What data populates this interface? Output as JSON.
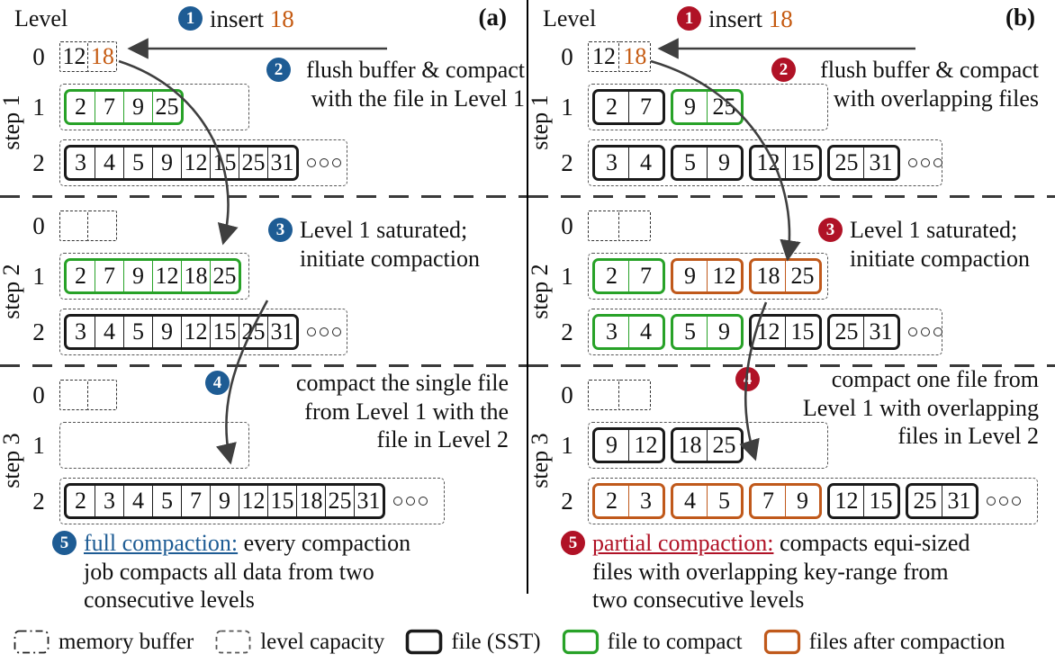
{
  "figure": {
    "panels": [
      {
        "name": "a",
        "tag": "(a)",
        "level_label": "Level",
        "badge_color": "#1e5c94",
        "steps": [
          {
            "label": "step 1",
            "levels": [
              {
                "num": "0",
                "kind": "buffer",
                "files": [
                  {
                    "style": "buffer",
                    "cells": [
                      {
                        "v": "12"
                      },
                      {
                        "v": "18",
                        "c": "#c55a11"
                      }
                    ]
                  }
                ]
              },
              {
                "num": "1",
                "kind": "capacity",
                "cap": 6.2,
                "files": [
                  {
                    "style": "compact",
                    "cells": [
                      {
                        "v": "2"
                      },
                      {
                        "v": "7"
                      },
                      {
                        "v": "9"
                      },
                      {
                        "v": "25"
                      }
                    ]
                  }
                ]
              },
              {
                "num": "2",
                "kind": "capacity",
                "cap": 9.4,
                "more": true,
                "files": [
                  {
                    "style": "sst",
                    "cells": [
                      {
                        "v": "3"
                      },
                      {
                        "v": "4"
                      },
                      {
                        "v": "5"
                      },
                      {
                        "v": "9"
                      },
                      {
                        "v": "12"
                      },
                      {
                        "v": "15"
                      },
                      {
                        "v": "25"
                      },
                      {
                        "v": "31"
                      }
                    ]
                  }
                ]
              }
            ]
          },
          {
            "label": "step 2",
            "levels": [
              {
                "num": "0",
                "kind": "buffer",
                "files": [
                  {
                    "style": "buffer",
                    "cells": [
                      {},
                      {}
                    ]
                  }
                ]
              },
              {
                "num": "1",
                "kind": "capacity",
                "cap": 6.2,
                "files": [
                  {
                    "style": "compact",
                    "cells": [
                      {
                        "v": "2"
                      },
                      {
                        "v": "7"
                      },
                      {
                        "v": "9"
                      },
                      {
                        "v": "12"
                      },
                      {
                        "v": "18"
                      },
                      {
                        "v": "25"
                      }
                    ]
                  }
                ]
              },
              {
                "num": "2",
                "kind": "capacity",
                "cap": 9.4,
                "more": true,
                "files": [
                  {
                    "style": "sst",
                    "cells": [
                      {
                        "v": "3"
                      },
                      {
                        "v": "4"
                      },
                      {
                        "v": "5"
                      },
                      {
                        "v": "9"
                      },
                      {
                        "v": "12"
                      },
                      {
                        "v": "15"
                      },
                      {
                        "v": "25"
                      },
                      {
                        "v": "31"
                      }
                    ]
                  }
                ]
              }
            ]
          },
          {
            "label": "step 3",
            "levels": [
              {
                "num": "0",
                "kind": "buffer",
                "files": [
                  {
                    "style": "buffer",
                    "cells": [
                      {},
                      {}
                    ]
                  }
                ]
              },
              {
                "num": "1",
                "kind": "capacity",
                "cap": 6.2,
                "files": []
              },
              {
                "num": "2",
                "kind": "capacity",
                "cap": 12.6,
                "more": true,
                "files": [
                  {
                    "style": "sst",
                    "cells": [
                      {
                        "v": "2"
                      },
                      {
                        "v": "3"
                      },
                      {
                        "v": "4"
                      },
                      {
                        "v": "5"
                      },
                      {
                        "v": "7"
                      },
                      {
                        "v": "9"
                      },
                      {
                        "v": "12"
                      },
                      {
                        "v": "15"
                      },
                      {
                        "v": "18"
                      },
                      {
                        "v": "25"
                      },
                      {
                        "v": "31"
                      }
                    ]
                  }
                ]
              }
            ]
          }
        ],
        "annotations": [
          {
            "id": "1",
            "badge": "1",
            "lines": [
              [
                {
                  "t": "insert "
                },
                {
                  "t": "18",
                  "c": "#c55a11"
                }
              ]
            ]
          },
          {
            "id": "2",
            "badge": "2",
            "lines": [
              [
                {
                  "t": "flush buffer & compact"
                }
              ],
              [
                {
                  "t": "with the file in Level 1"
                }
              ]
            ]
          },
          {
            "id": "3",
            "badge": "3",
            "lines": [
              [
                {
                  "t": "Level 1 saturated;"
                }
              ],
              [
                {
                  "t": "initiate compaction"
                }
              ]
            ]
          },
          {
            "id": "4",
            "badge": "4",
            "lines": [
              [
                {
                  "t": "compact the single file"
                }
              ],
              [
                {
                  "t": "from Level 1 with the"
                }
              ],
              [
                {
                  "t": "file in Level 2"
                }
              ]
            ]
          },
          {
            "id": "5",
            "badge": "5",
            "lines": [
              [
                {
                  "t": "full compaction:",
                  "c": "#1e5c94",
                  "u": true
                },
                {
                  "t": " every compaction"
                }
              ],
              [
                {
                  "t": "job compacts all data from two"
                }
              ],
              [
                {
                  "t": "consecutive levels"
                }
              ]
            ]
          }
        ]
      },
      {
        "name": "b",
        "tag": "(b)",
        "level_label": "Level",
        "badge_color": "#b01226",
        "steps": [
          {
            "label": "step 1",
            "levels": [
              {
                "num": "0",
                "kind": "buffer",
                "files": [
                  {
                    "style": "buffer",
                    "cells": [
                      {
                        "v": "12"
                      },
                      {
                        "v": "18",
                        "c": "#c55a11"
                      }
                    ]
                  }
                ]
              },
              {
                "num": "1",
                "kind": "capacity",
                "cap": 6.5,
                "files": [
                  {
                    "style": "sst",
                    "cells": [
                      {
                        "v": "2"
                      },
                      {
                        "v": "7"
                      }
                    ]
                  },
                  {
                    "style": "compact",
                    "cells": [
                      {
                        "v": "9"
                      },
                      {
                        "v": "25"
                      }
                    ]
                  }
                ]
              },
              {
                "num": "2",
                "kind": "capacity",
                "cap": 9.6,
                "more": true,
                "files": [
                  {
                    "style": "sst",
                    "cells": [
                      {
                        "v": "3"
                      },
                      {
                        "v": "4"
                      }
                    ]
                  },
                  {
                    "style": "sst",
                    "cells": [
                      {
                        "v": "5"
                      },
                      {
                        "v": "9"
                      }
                    ]
                  },
                  {
                    "style": "sst",
                    "cells": [
                      {
                        "v": "12"
                      },
                      {
                        "v": "15"
                      }
                    ]
                  },
                  {
                    "style": "sst",
                    "cells": [
                      {
                        "v": "25"
                      },
                      {
                        "v": "31"
                      }
                    ]
                  }
                ]
              }
            ]
          },
          {
            "label": "step 2",
            "levels": [
              {
                "num": "0",
                "kind": "buffer",
                "files": [
                  {
                    "style": "buffer",
                    "cells": [
                      {},
                      {}
                    ]
                  }
                ]
              },
              {
                "num": "1",
                "kind": "capacity",
                "cap": 6.5,
                "files": [
                  {
                    "style": "compact",
                    "cells": [
                      {
                        "v": "2"
                      },
                      {
                        "v": "7"
                      }
                    ]
                  },
                  {
                    "style": "after",
                    "cells": [
                      {
                        "v": "9"
                      },
                      {
                        "v": "12"
                      }
                    ]
                  },
                  {
                    "style": "after",
                    "cells": [
                      {
                        "v": "18"
                      },
                      {
                        "v": "25"
                      }
                    ]
                  }
                ]
              },
              {
                "num": "2",
                "kind": "capacity",
                "cap": 9.6,
                "more": true,
                "files": [
                  {
                    "style": "compact",
                    "cells": [
                      {
                        "v": "3"
                      },
                      {
                        "v": "4"
                      }
                    ]
                  },
                  {
                    "style": "compact",
                    "cells": [
                      {
                        "v": "5"
                      },
                      {
                        "v": "9"
                      }
                    ]
                  },
                  {
                    "style": "sst",
                    "cells": [
                      {
                        "v": "12"
                      },
                      {
                        "v": "15"
                      }
                    ]
                  },
                  {
                    "style": "sst",
                    "cells": [
                      {
                        "v": "25"
                      },
                      {
                        "v": "31"
                      }
                    ]
                  }
                ]
              }
            ]
          },
          {
            "label": "step 3",
            "levels": [
              {
                "num": "0",
                "kind": "buffer",
                "files": [
                  {
                    "style": "buffer",
                    "cells": [
                      {},
                      {}
                    ]
                  }
                ]
              },
              {
                "num": "1",
                "kind": "capacity",
                "cap": 6.5,
                "files": [
                  {
                    "style": "sst",
                    "cells": [
                      {
                        "v": "9"
                      },
                      {
                        "v": "12"
                      }
                    ]
                  },
                  {
                    "style": "sst",
                    "cells": [
                      {
                        "v": "18"
                      },
                      {
                        "v": "25"
                      }
                    ]
                  }
                ]
              },
              {
                "num": "2",
                "kind": "capacity",
                "cap": 12.2,
                "more": true,
                "files": [
                  {
                    "style": "after",
                    "cells": [
                      {
                        "v": "2"
                      },
                      {
                        "v": "3"
                      }
                    ]
                  },
                  {
                    "style": "after",
                    "cells": [
                      {
                        "v": "4"
                      },
                      {
                        "v": "5"
                      }
                    ]
                  },
                  {
                    "style": "after",
                    "cells": [
                      {
                        "v": "7"
                      },
                      {
                        "v": "9"
                      }
                    ]
                  },
                  {
                    "style": "sst",
                    "cells": [
                      {
                        "v": "12"
                      },
                      {
                        "v": "15"
                      }
                    ]
                  },
                  {
                    "style": "sst",
                    "cells": [
                      {
                        "v": "25"
                      },
                      {
                        "v": "31"
                      }
                    ]
                  }
                ]
              }
            ]
          }
        ],
        "annotations": [
          {
            "id": "1",
            "badge": "1",
            "lines": [
              [
                {
                  "t": "insert "
                },
                {
                  "t": "18",
                  "c": "#c55a11"
                }
              ]
            ]
          },
          {
            "id": "2",
            "badge": "2",
            "lines": [
              [
                {
                  "t": "flush buffer & compact"
                }
              ],
              [
                {
                  "t": "with overlapping files"
                }
              ]
            ]
          },
          {
            "id": "3",
            "badge": "3",
            "lines": [
              [
                {
                  "t": "Level 1 saturated;"
                }
              ],
              [
                {
                  "t": "initiate compaction"
                }
              ]
            ]
          },
          {
            "id": "4",
            "badge": "4",
            "lines": [
              [
                {
                  "t": "compact one file from"
                }
              ],
              [
                {
                  "t": "Level 1 with overlapping"
                }
              ],
              [
                {
                  "t": "files in Level 2"
                }
              ]
            ]
          },
          {
            "id": "5",
            "badge": "5",
            "lines": [
              [
                {
                  "t": "partial compaction:",
                  "c": "#b01226",
                  "u": true
                },
                {
                  "t": " compacts equi-sized"
                }
              ],
              [
                {
                  "t": "files with overlapping key-range from"
                }
              ],
              [
                {
                  "t": "two consecutive levels"
                }
              ]
            ]
          }
        ]
      }
    ]
  },
  "legend": {
    "items": [
      {
        "swatch": "buffer",
        "label": "memory buffer"
      },
      {
        "swatch": "capacity",
        "label": "level capacity"
      },
      {
        "swatch": "sst",
        "label": "file (SST)"
      },
      {
        "swatch": "compact",
        "label": "file to compact"
      },
      {
        "swatch": "after",
        "label": "files after compaction"
      }
    ]
  },
  "colors": {
    "sst": "#1a1a1a",
    "compact": "#28a228",
    "after": "#c0591b",
    "buffer_border": "#222222",
    "capacity_border": "#555555",
    "badge_a": "#1e5c94",
    "badge_b": "#b01226",
    "orange_text": "#c55a11",
    "arrow": "#3f3f3f"
  }
}
